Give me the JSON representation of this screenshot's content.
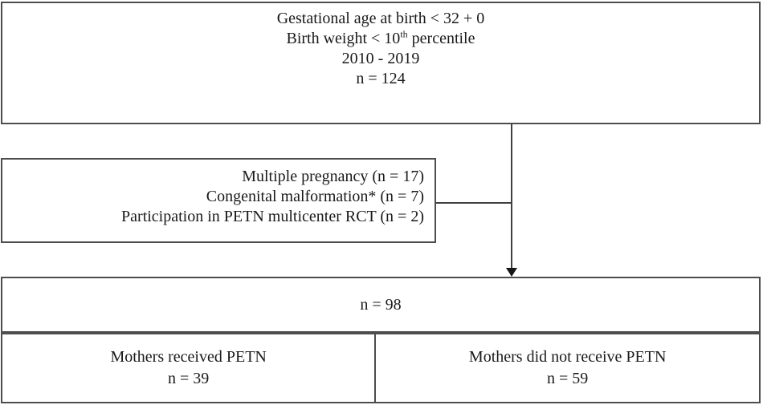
{
  "colors": {
    "border": "#4d4d4d",
    "arrow": "#404040",
    "text": "#1a1a1a",
    "background": "#ffffff"
  },
  "top_box": {
    "line1": "Gestational age at birth < 32 + 0",
    "line2_prefix": "Birth weight < 10",
    "line2_sup": "th",
    "line2_suffix": " percentile",
    "line3": "2010 - 2019",
    "line4": "n = 124"
  },
  "exclusion_box": {
    "line1": "Multiple pregnancy (n = 17)",
    "line2": "Congenital malformation* (n = 7)",
    "line3": "Participation in PETN multicenter RCT (n = 2)"
  },
  "included_box": {
    "label": "n = 98"
  },
  "left_group_box": {
    "line1": "Mothers received PETN",
    "line2": "n = 39"
  },
  "right_group_box": {
    "line1": "Mothers did not receive PETN",
    "line2": "n = 59"
  }
}
